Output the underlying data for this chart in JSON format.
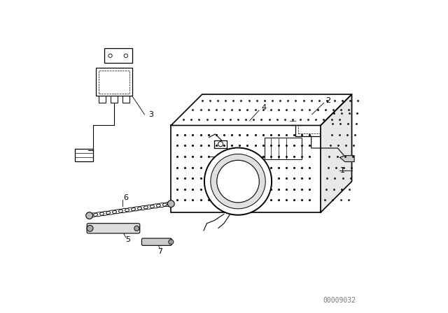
{
  "background_color": "#ffffff",
  "line_color": "#000000",
  "part_number_text": "00009032",
  "part_number_fontsize": 7,
  "fig_width": 6.4,
  "fig_height": 4.48,
  "dpi": 100
}
